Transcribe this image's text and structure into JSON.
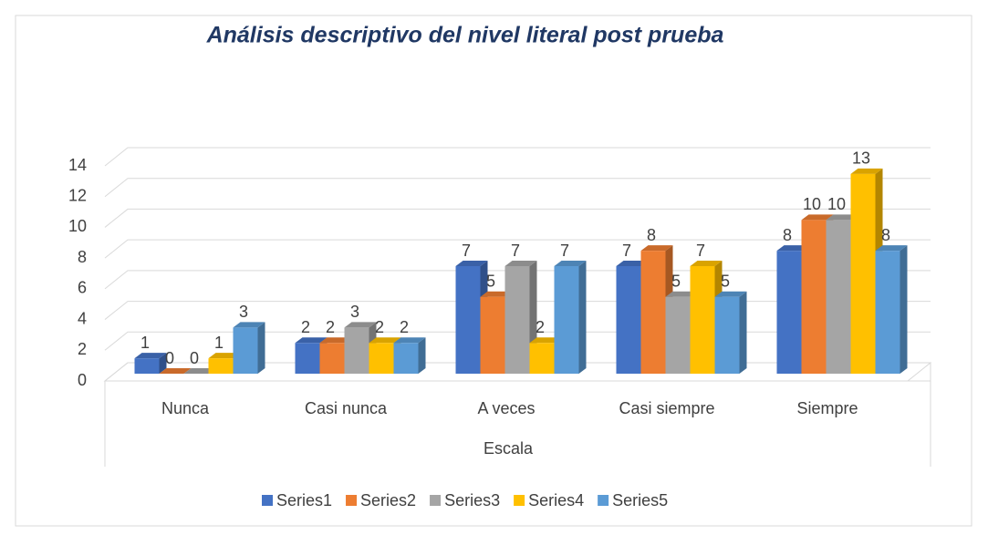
{
  "chart_data": {
    "type": "bar3d",
    "title": "Análisis descriptivo del nivel literal post prueba",
    "xlabel": "Escala",
    "categories": [
      "Nunca",
      "Casi nunca",
      "A veces",
      "Casi siempre",
      "Siempre"
    ],
    "series": [
      {
        "name": "Series1",
        "color": "#4472c4",
        "values": [
          1,
          2,
          7,
          7,
          8
        ]
      },
      {
        "name": "Series2",
        "color": "#ed7d31",
        "values": [
          0,
          2,
          5,
          8,
          10
        ]
      },
      {
        "name": "Series3",
        "color": "#a5a5a5",
        "values": [
          0,
          3,
          7,
          5,
          10
        ]
      },
      {
        "name": "Series4",
        "color": "#ffc000",
        "values": [
          1,
          2,
          2,
          7,
          13
        ]
      },
      {
        "name": "Series5",
        "color": "#5b9bd5",
        "values": [
          3,
          2,
          7,
          5,
          8
        ]
      }
    ],
    "ylim": [
      0,
      14
    ],
    "yticks": [
      0,
      2,
      4,
      6,
      8,
      10,
      12,
      14
    ],
    "grid": true,
    "legend": "bottom"
  }
}
